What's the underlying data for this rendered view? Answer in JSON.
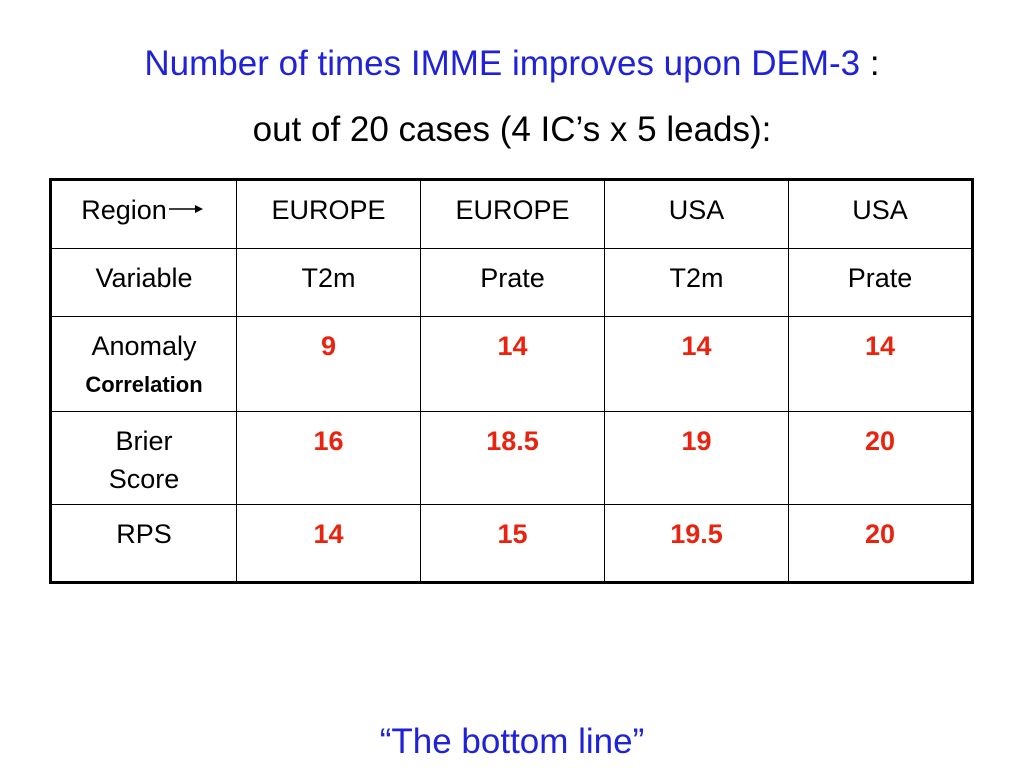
{
  "title": {
    "line1_main": "Number of times IMME improves upon DEM-3",
    "line1_suffix": " :",
    "line2": "out of 20 cases (4 IC’s x 5 leads):"
  },
  "table": {
    "region_label": "Region",
    "regions": [
      "EUROPE",
      "EUROPE",
      "USA",
      "USA"
    ],
    "variable_label": "Variable",
    "variables": [
      "T2m",
      "Prate",
      "T2m",
      "Prate"
    ],
    "rows": [
      {
        "label": "Anomaly",
        "sublabel": "Correlation",
        "values": [
          "9",
          "14",
          "14",
          "14"
        ]
      },
      {
        "label": "Brier Score",
        "values": [
          "16",
          "18.5",
          "19",
          "20"
        ]
      },
      {
        "label": "RPS",
        "values": [
          "14",
          "15",
          "19.5",
          "20"
        ]
      }
    ]
  },
  "footer": "“The bottom line”",
  "colors": {
    "title_blue": "#1f22d6",
    "value_red": "#e8230f"
  },
  "icons": {
    "region_arrow": "right-arrow-icon"
  }
}
